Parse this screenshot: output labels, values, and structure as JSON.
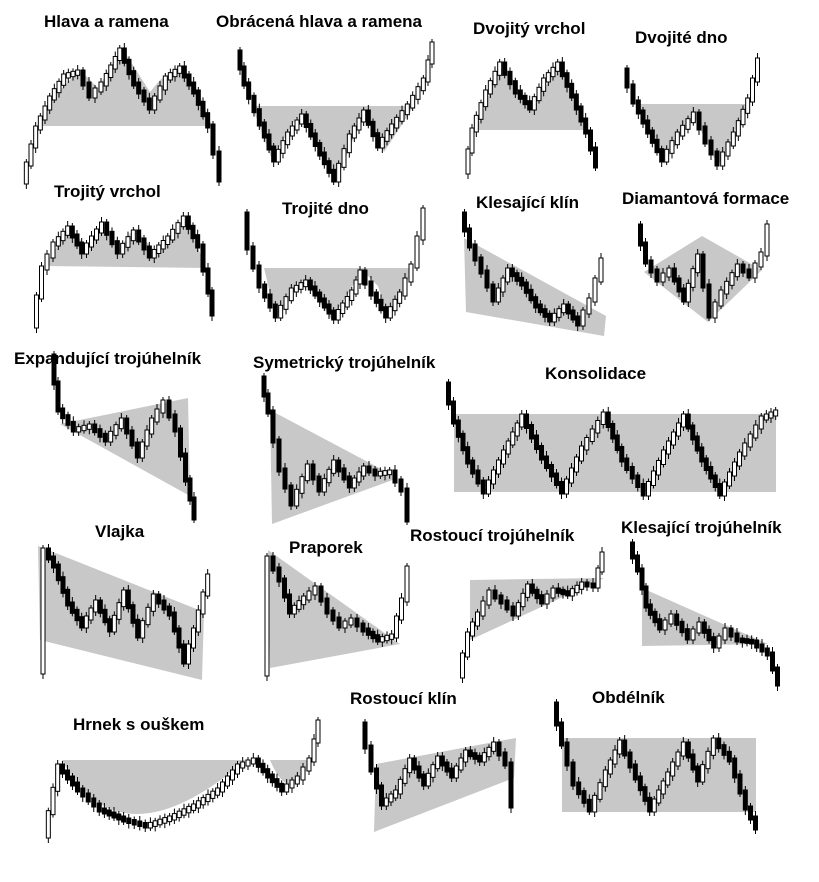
{
  "patterns": [
    {
      "name": "Hlava a ramena"
    },
    {
      "name": "Obrácená hlava a ramena"
    },
    {
      "name": "Dvojitý vrchol"
    },
    {
      "name": "Dvojité dno"
    },
    {
      "name": "Trojitý vrchol"
    },
    {
      "name": "Trojité dno"
    },
    {
      "name": "Klesající klín"
    },
    {
      "name": "Diamantová formace"
    },
    {
      "name": "Expandující trojúhelník"
    },
    {
      "name": "Symetrický trojúhelník"
    },
    {
      "name": "Konsolidace"
    },
    {
      "name": "Vlajka"
    },
    {
      "name": "Praporek"
    },
    {
      "name": "Rostoucí trojúhelník"
    },
    {
      "name": "Klesající trojúhelník"
    },
    {
      "name": "Hrnek s ouškem"
    },
    {
      "name": "Rostoucí klín"
    },
    {
      "name": "Obdélník"
    }
  ],
  "colors": {
    "shade": "#c8c8c8",
    "candle_dark": "#000000",
    "candle_light": "#ffffff",
    "title": "#000000"
  }
}
